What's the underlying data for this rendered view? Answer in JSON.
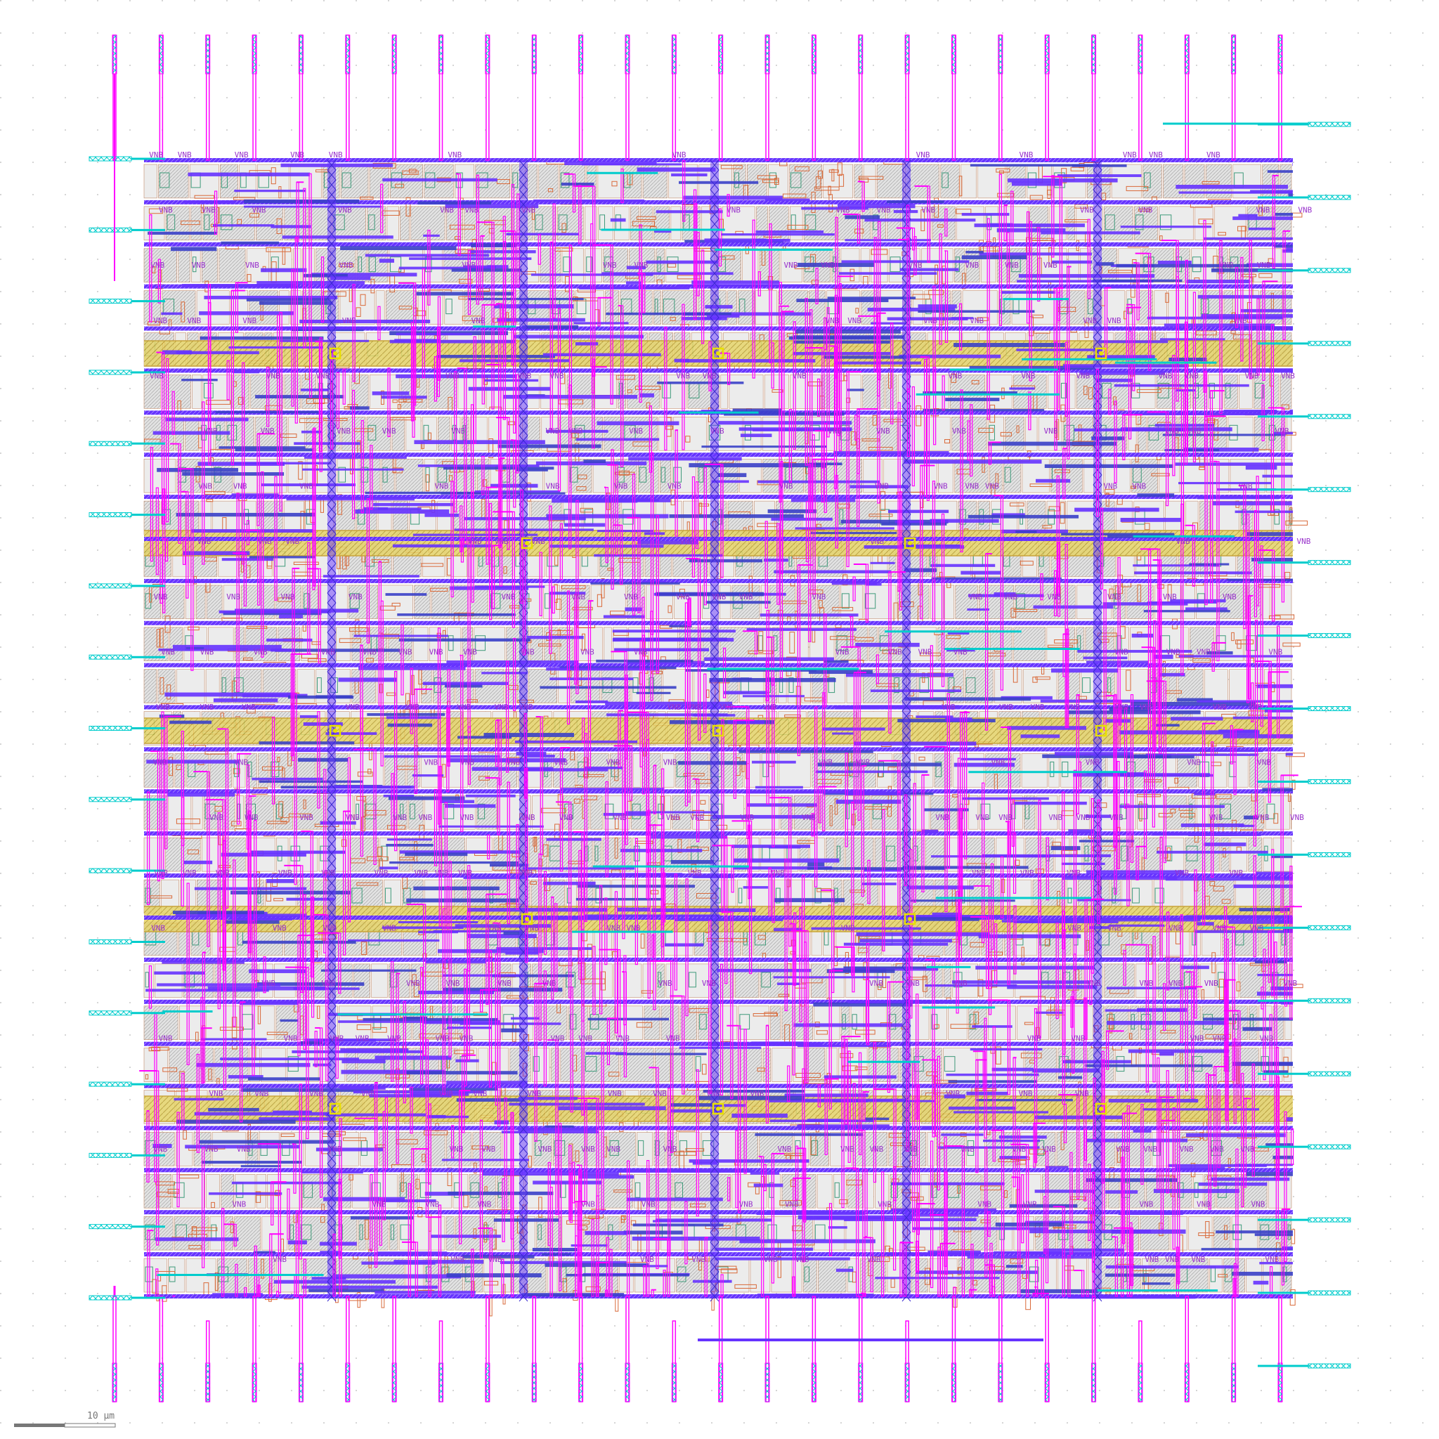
{
  "layout_view": {
    "net_label": "VNB",
    "scale_bar": {
      "label": "10 µm"
    },
    "layer_colors": {
      "background": "#ffffff",
      "grid_dot": "#c8c8c8",
      "metal1": "#6633ff",
      "metal2": "#ff00ff",
      "metal3_pins": "#00cccc",
      "local_interconnect": "#d96a3a",
      "power_rail": "#d7c84a",
      "via_marker": "#e8e000",
      "cell_fill": "#d0d0d0",
      "diffusion": "#3f9a7a",
      "label_text": "#9933cc"
    },
    "top_pin_count": 26,
    "bottom_pin_count": 26,
    "left_pin_count": 17,
    "right_pin_count": 18,
    "power_rail_count": 5
  }
}
